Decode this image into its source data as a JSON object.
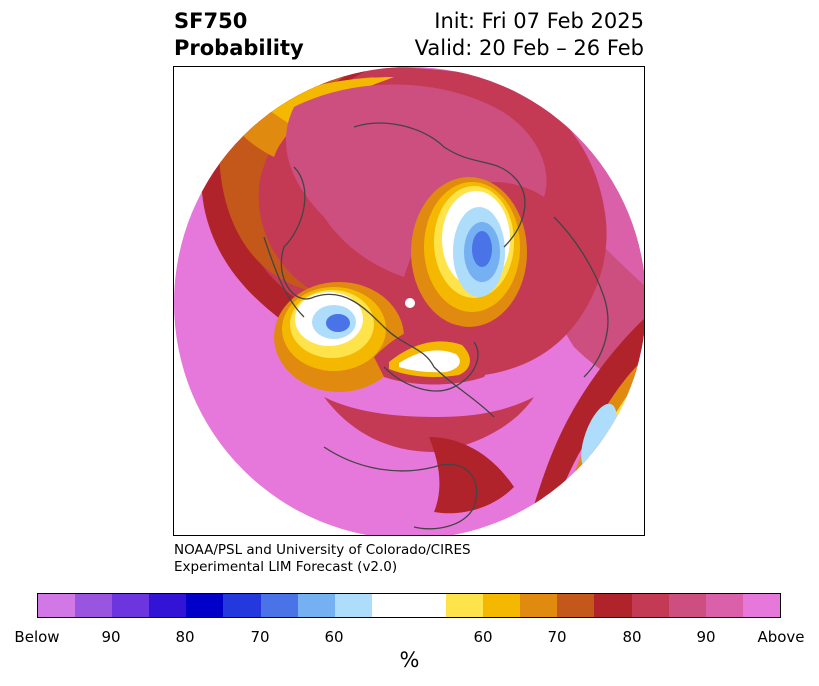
{
  "title": {
    "left_line1": "SF750",
    "left_line2": "Probability",
    "right_line1": "Init: Fri 07 Feb 2025",
    "right_line2": "Valid: 20 Feb – 26 Feb"
  },
  "credit": {
    "line1": "NOAA/PSL and University of Colorado/CIRES",
    "line2": "Experimental LIM Forecast (v2.0)"
  },
  "colorbar": {
    "unit": "%",
    "colors": [
      "#d278e6",
      "#9a55e0",
      "#6c35dd",
      "#3313d6",
      "#0000c8",
      "#2338dd",
      "#4a73e8",
      "#74b0f2",
      "#aedcfb",
      "#ffffff",
      "#ffffff",
      "#ffe34a",
      "#f5b800",
      "#e08a10",
      "#c4581a",
      "#b0232a",
      "#c43a55",
      "#cc4f80",
      "#da60aa",
      "#e678dc"
    ],
    "ticks": [
      "Below",
      "90",
      "80",
      "70",
      "60",
      "60",
      "70",
      "80",
      "90",
      "Above"
    ]
  },
  "map": {
    "projection": "north-polar-stereographic",
    "field_colors": {
      "above_90": "#e678dc",
      "p90": "#da60aa",
      "p80": "#cc4f80",
      "p75": "#c43a55",
      "p70": "#b0232a",
      "p65": "#c4581a",
      "p60": "#e08a10",
      "p55": "#f5b800",
      "p50": "#ffe34a",
      "neutral": "#ffffff",
      "below_60": "#aedcfb",
      "below_70": "#74b0f2",
      "below_80": "#4a73e8"
    }
  }
}
